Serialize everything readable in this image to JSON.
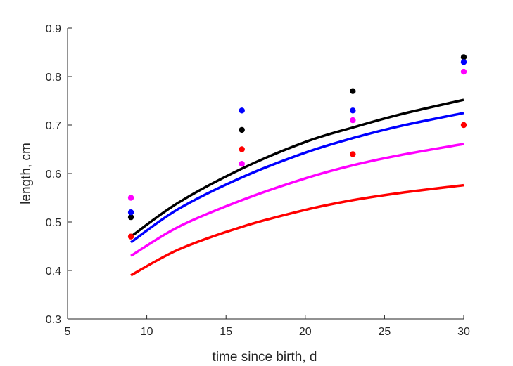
{
  "chart_data": {
    "type": "scatter",
    "xlabel": "time since birth, d",
    "ylabel": "length, cm",
    "xlim": [
      5,
      30
    ],
    "ylim": [
      0.3,
      0.9
    ],
    "xticks": [
      5,
      10,
      15,
      20,
      25,
      30
    ],
    "yticks": [
      0.3,
      0.4,
      0.5,
      0.6,
      0.7,
      0.8,
      0.9
    ],
    "grid": false,
    "legend": "none",
    "series": [
      {
        "color": "#000000",
        "points": {
          "x": [
            9,
            16,
            23,
            30
          ],
          "y": [
            0.51,
            0.69,
            0.77,
            0.84
          ]
        },
        "curve": {
          "x": [
            9,
            12,
            16,
            20,
            23,
            26,
            30
          ],
          "y": [
            0.47,
            0.54,
            0.61,
            0.665,
            0.695,
            0.722,
            0.752
          ]
        }
      },
      {
        "color": "#0000ff",
        "points": {
          "x": [
            9,
            16,
            23,
            30
          ],
          "y": [
            0.52,
            0.73,
            0.73,
            0.83
          ]
        },
        "curve": {
          "x": [
            9,
            12,
            16,
            20,
            23,
            26,
            30
          ],
          "y": [
            0.458,
            0.527,
            0.592,
            0.643,
            0.673,
            0.698,
            0.725
          ]
        }
      },
      {
        "color": "#ff00ff",
        "points": {
          "x": [
            9,
            16,
            23,
            30
          ],
          "y": [
            0.55,
            0.62,
            0.71,
            0.81
          ]
        },
        "curve": {
          "x": [
            9,
            12,
            16,
            20,
            23,
            26,
            30
          ],
          "y": [
            0.43,
            0.49,
            0.545,
            0.59,
            0.617,
            0.638,
            0.661
          ]
        }
      },
      {
        "color": "#ff0000",
        "points": {
          "x": [
            9,
            16,
            23,
            30
          ],
          "y": [
            0.47,
            0.65,
            0.64,
            0.7
          ]
        },
        "curve": {
          "x": [
            9,
            12,
            16,
            20,
            23,
            26,
            30
          ],
          "y": [
            0.39,
            0.443,
            0.49,
            0.525,
            0.545,
            0.56,
            0.576
          ]
        }
      }
    ]
  }
}
